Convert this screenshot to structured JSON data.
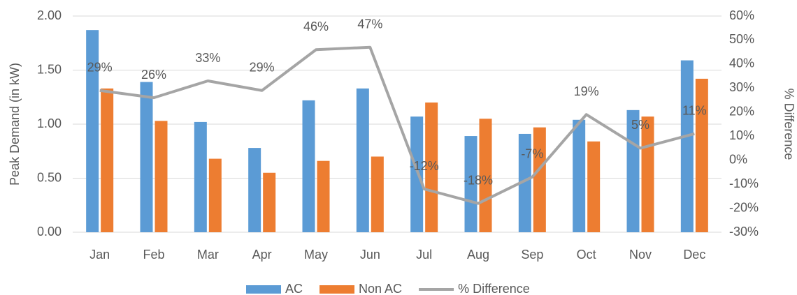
{
  "chart_data": {
    "type": "bar",
    "categories": [
      "Jan",
      "Feb",
      "Mar",
      "Apr",
      "May",
      "Jun",
      "Jul",
      "Aug",
      "Sep",
      "Oct",
      "Nov",
      "Dec"
    ],
    "series": [
      {
        "name": "AC",
        "color": "#5b9bd5",
        "values": [
          1.87,
          1.39,
          1.02,
          0.78,
          1.22,
          1.33,
          1.07,
          0.89,
          0.91,
          1.04,
          1.13,
          1.59
        ]
      },
      {
        "name": "Non AC",
        "color": "#ed7d31",
        "values": [
          1.33,
          1.03,
          0.68,
          0.55,
          0.66,
          0.7,
          1.2,
          1.05,
          0.97,
          0.84,
          1.07,
          1.42
        ]
      },
      {
        "name": "% Difference",
        "type": "line",
        "axis": "y2",
        "color": "#a5a5a5",
        "values": [
          29,
          26,
          33,
          29,
          46,
          47,
          -12,
          -18,
          -7,
          19,
          5,
          11
        ],
        "value_labels": [
          "29%",
          "26%",
          "33%",
          "29%",
          "46%",
          "47%",
          "-12%",
          "-18%",
          "-7%",
          "19%",
          "5%",
          "11%"
        ]
      }
    ],
    "y_label": "Peak Demand (in kW)",
    "y2_label": "% Difference",
    "ylim": [
      0,
      2
    ],
    "yticks": [
      {
        "value": 0,
        "label": "0.00"
      },
      {
        "value": 0.5,
        "label": "0.50"
      },
      {
        "value": 1,
        "label": "1.00"
      },
      {
        "value": 1.5,
        "label": "1.50"
      },
      {
        "value": 2,
        "label": "2.00"
      }
    ],
    "y2lim": [
      -30,
      60
    ],
    "y2ticks": [
      {
        "value": -30,
        "label": "-30%"
      },
      {
        "value": -20,
        "label": "-20%"
      },
      {
        "value": -10,
        "label": "-10%"
      },
      {
        "value": 0,
        "label": "0%"
      },
      {
        "value": 10,
        "label": "10%"
      },
      {
        "value": 20,
        "label": "20%"
      },
      {
        "value": 30,
        "label": "30%"
      },
      {
        "value": 40,
        "label": "40%"
      },
      {
        "value": 50,
        "label": "50%"
      },
      {
        "value": 60,
        "label": "60%"
      }
    ],
    "grid": true,
    "legend": "bottom"
  }
}
